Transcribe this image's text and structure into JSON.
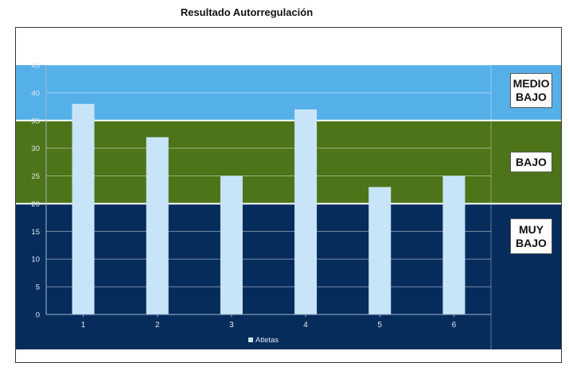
{
  "chart_data": {
    "type": "bar",
    "title": "Resultado Autorregulación",
    "categories": [
      "1",
      "2",
      "3",
      "4",
      "5",
      "6"
    ],
    "series": [
      {
        "name": "Atletas",
        "values": [
          38,
          32,
          25,
          37,
          23,
          25
        ]
      }
    ],
    "ylim": [
      0,
      45
    ],
    "yticks": [
      0,
      5,
      10,
      15,
      20,
      25,
      30,
      35,
      40,
      45
    ],
    "grid": true,
    "legend": "bottom",
    "zones": [
      {
        "label": "MUY BAJO",
        "label_lines": [
          "MUY",
          "BAJO"
        ],
        "from": 0,
        "to": 20,
        "color": "#062c5c"
      },
      {
        "label": "BAJO",
        "label_lines": [
          "BAJO"
        ],
        "from": 20,
        "to": 35,
        "color": "#4d7418"
      },
      {
        "label": "MEDIO BAJO",
        "label_lines": [
          "MEDIO",
          "BAJO"
        ],
        "from": 35,
        "to": 45,
        "color": "#55b0e8"
      }
    ],
    "bar_color": "#c8e4f8"
  }
}
